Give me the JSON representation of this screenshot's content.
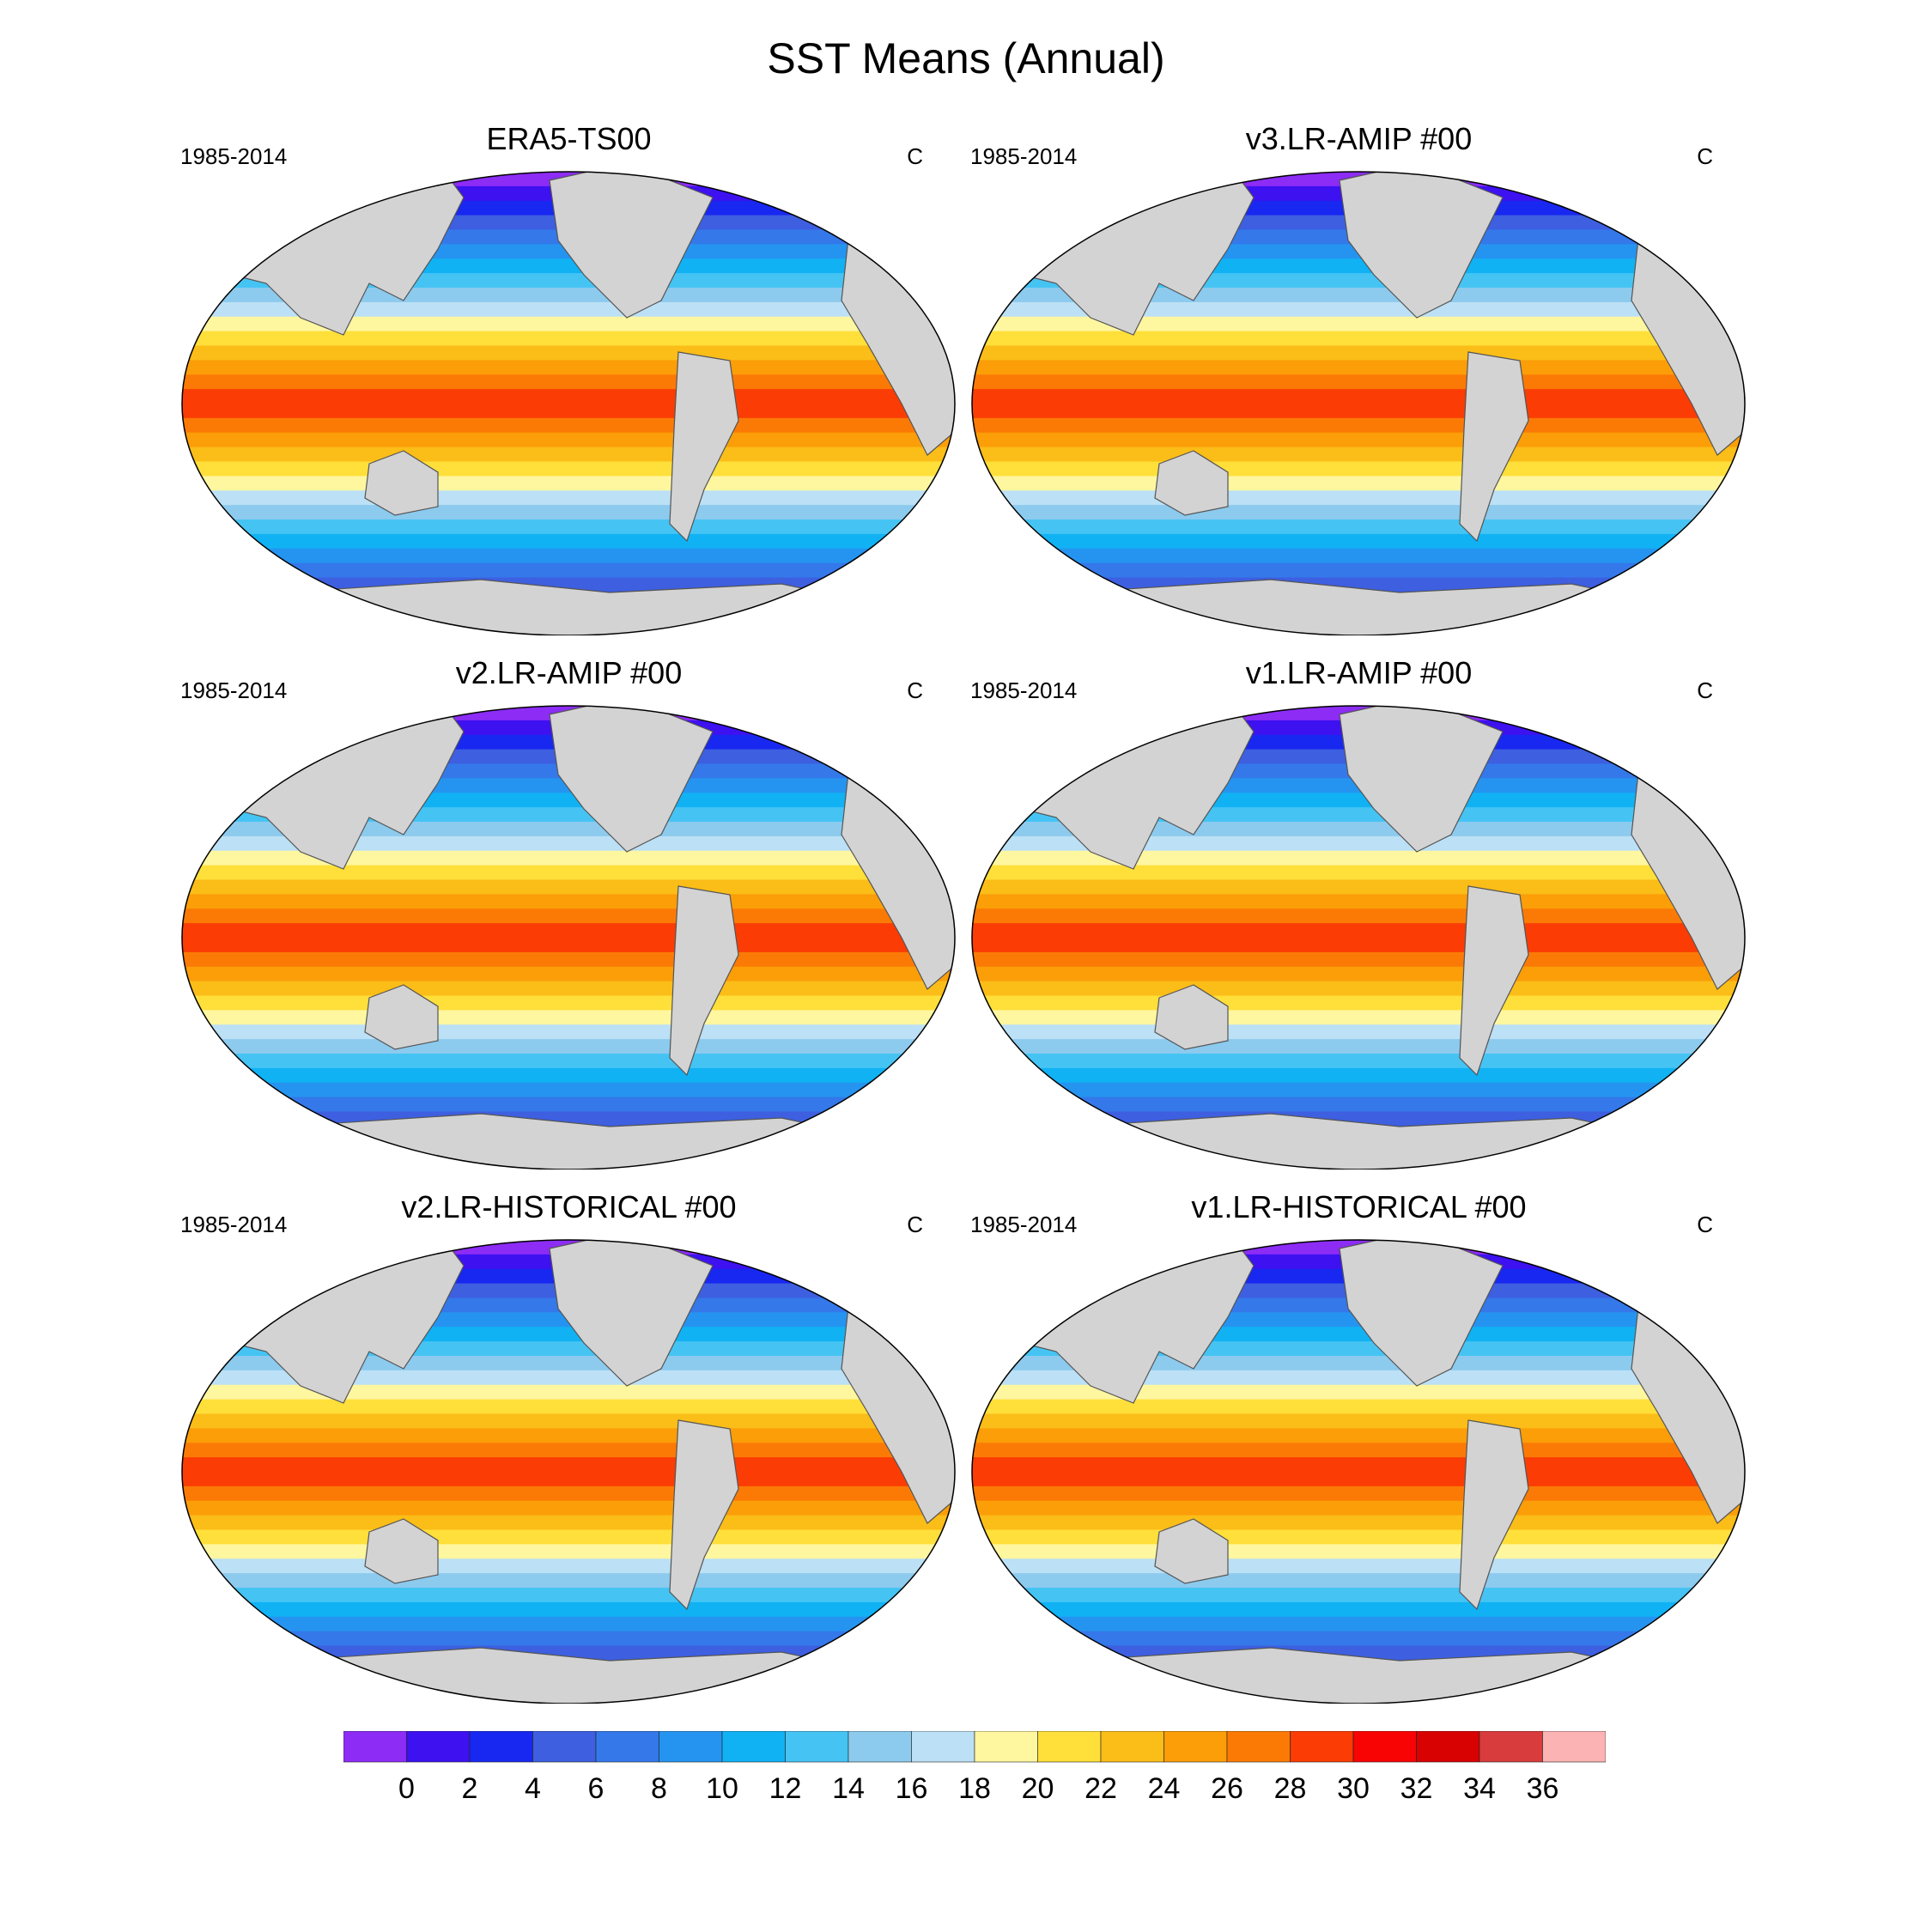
{
  "title": "SST Means (Annual)",
  "chart_data": [
    {
      "type": "heatmap",
      "title": "ERA5-TS00",
      "period": "1985-2014",
      "units": "C",
      "projection": "global map"
    },
    {
      "type": "heatmap",
      "title": "v3.LR-AMIP  #00",
      "period": "1985-2014",
      "units": "C",
      "projection": "global map"
    },
    {
      "type": "heatmap",
      "title": "v2.LR-AMIP  #00",
      "period": "1985-2014",
      "units": "C",
      "projection": "global map"
    },
    {
      "type": "heatmap",
      "title": "v1.LR-AMIP  #00",
      "period": "1985-2014",
      "units": "C",
      "projection": "global map"
    },
    {
      "type": "heatmap",
      "title": "v2.LR-HISTORICAL  #00",
      "period": "1985-2014",
      "units": "C",
      "projection": "global map"
    },
    {
      "type": "heatmap",
      "title": "v1.LR-HISTORICAL  #00",
      "period": "1985-2014",
      "units": "C",
      "projection": "global map"
    }
  ],
  "colorbar": {
    "ticks": [
      "0",
      "2",
      "4",
      "6",
      "8",
      "10",
      "12",
      "14",
      "16",
      "18",
      "20",
      "22",
      "24",
      "26",
      "28",
      "30",
      "32",
      "34",
      "36"
    ],
    "colors": [
      "#8c2cf5",
      "#3d11f0",
      "#1828f0",
      "#3d5fe0",
      "#3478ea",
      "#2594f0",
      "#10b2f4",
      "#45c4f4",
      "#8ccaee",
      "#bce0f5",
      "#fff6a0",
      "#ffdf3a",
      "#fbbd18",
      "#fb9e08",
      "#fb7a06",
      "#fb3c04",
      "#f80404",
      "#d80202",
      "#d83c3c",
      "#fcb3b3"
    ],
    "ocean_colors_by_lat": [
      "#8c2cf5",
      "#3d11f0",
      "#1828f0",
      "#3d5fe0",
      "#3478ea",
      "#2594f0",
      "#10b2f4",
      "#45c4f4",
      "#8ccaee",
      "#bce0f5",
      "#fff6a0",
      "#ffdf3a",
      "#fbbd18",
      "#fb9e08",
      "#fb7a06",
      "#fb3c04"
    ],
    "land_color": "#d3d3d3"
  }
}
